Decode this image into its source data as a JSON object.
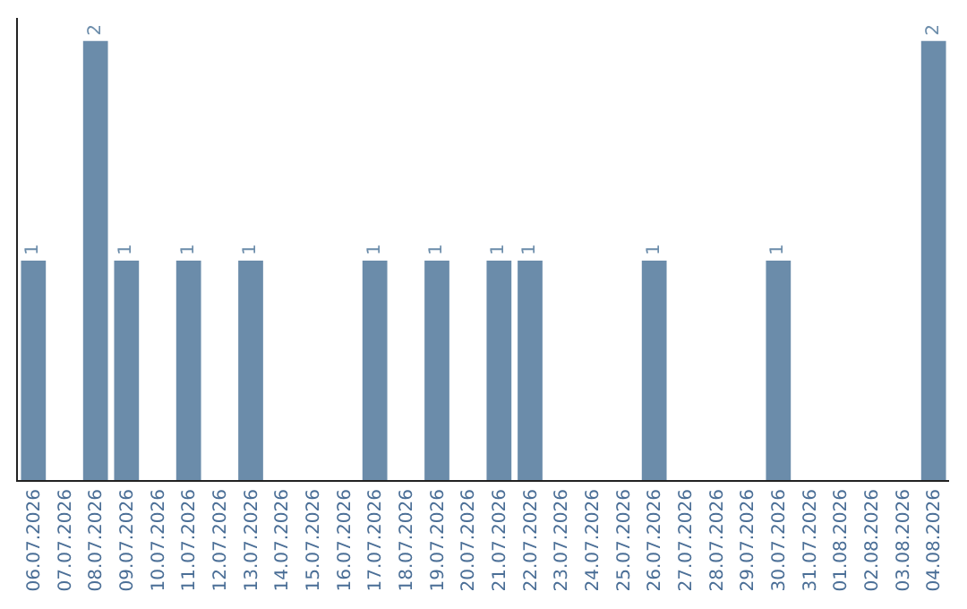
{
  "chart_data": {
    "type": "bar",
    "categories": [
      "06.07.2026",
      "07.07.2026",
      "08.07.2026",
      "09.07.2026",
      "10.07.2026",
      "11.07.2026",
      "12.07.2026",
      "13.07.2026",
      "14.07.2026",
      "15.07.2026",
      "16.07.2026",
      "17.07.2026",
      "18.07.2026",
      "19.07.2026",
      "20.07.2026",
      "21.07.2026",
      "22.07.2026",
      "23.07.2026",
      "24.07.2026",
      "25.07.2026",
      "26.07.2026",
      "27.07.2026",
      "28.07.2026",
      "29.07.2026",
      "30.07.2026",
      "31.07.2026",
      "01.08.2026",
      "02.08.2026",
      "03.08.2026",
      "04.08.2026"
    ],
    "values": [
      1,
      0,
      2,
      1,
      0,
      1,
      0,
      1,
      0,
      0,
      0,
      1,
      0,
      1,
      0,
      1,
      1,
      0,
      0,
      0,
      1,
      0,
      0,
      0,
      1,
      0,
      0,
      0,
      0,
      2
    ],
    "value_labels": [
      "1",
      null,
      "2",
      "1",
      null,
      "1",
      null,
      "1",
      null,
      null,
      null,
      "1",
      null,
      "1",
      null,
      "1",
      "1",
      null,
      null,
      null,
      "1",
      null,
      null,
      null,
      "1",
      null,
      null,
      null,
      null,
      "2"
    ],
    "color": "#6b8caa",
    "tick_labels": "x"
  }
}
